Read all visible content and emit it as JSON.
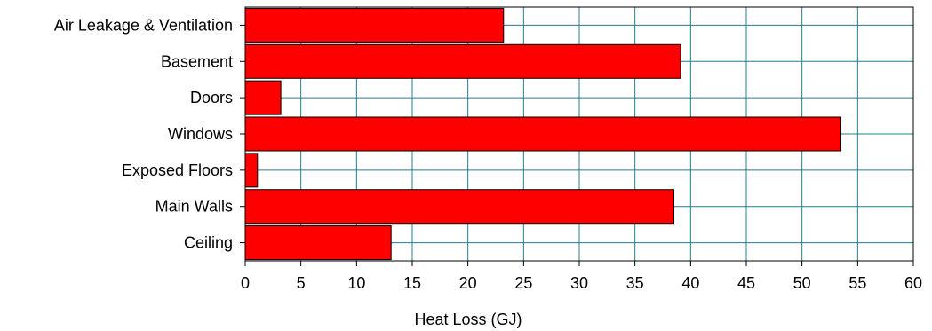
{
  "chart_data": {
    "type": "bar",
    "orientation": "horizontal",
    "title": "",
    "xlabel": "Heat Loss (GJ)",
    "ylabel": "",
    "categories": [
      "Air Leakage & Ventilation",
      "Basement",
      "Doors",
      "Windows",
      "Exposed Floors",
      "Main Walls",
      "Ceiling"
    ],
    "values": [
      23.2,
      39.1,
      3.2,
      53.5,
      1.1,
      38.5,
      13.1
    ],
    "xlim": [
      0,
      60
    ],
    "xticks": [
      "0",
      "5",
      "10",
      "15",
      "20",
      "25",
      "30",
      "35",
      "40",
      "45",
      "50",
      "55",
      "60"
    ],
    "grid": true,
    "bar_color": "#ff0000",
    "grid_color": "#1f7f8f"
  }
}
